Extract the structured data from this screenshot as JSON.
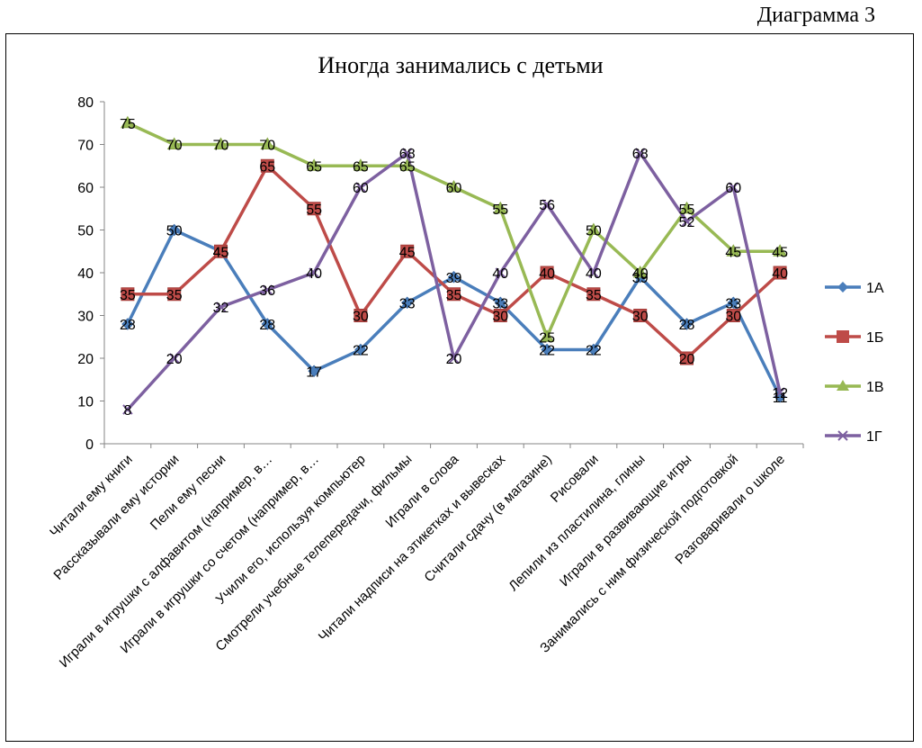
{
  "caption": "Диаграмма 3",
  "chart_data": {
    "type": "line",
    "title": "Иногда занимались с детьми",
    "xlabel": "",
    "ylabel": "",
    "ylim": [
      0,
      80
    ],
    "yticks": [
      0,
      10,
      20,
      30,
      40,
      50,
      60,
      70,
      80
    ],
    "grid": false,
    "legend_position": "right",
    "categories": [
      "Читали ему книги",
      "Рассказывали ему истории",
      "Пели ему песни",
      "Играли в игрушки с алфавитом (например, в…",
      "Играли в игрушки со счетом (например, в…",
      "Учили его, используя компьютер",
      "Смотрели учебные телепередачи, фильмы",
      "Играли в слова",
      "Читали надписи на этикетках и вывесках",
      "Считали сдачу (в магазине)",
      "Рисовали",
      "Лепили из пластилина, глины",
      "Играли в развивающие игры",
      "Занимались с ним физической подготовкой",
      "Разговаривали о школе"
    ],
    "series": [
      {
        "name": "1А",
        "color": "#4a7ebb",
        "marker": "diamond",
        "values": [
          28,
          50,
          45,
          28,
          17,
          22,
          33,
          39,
          33,
          22,
          22,
          39,
          28,
          33,
          11
        ]
      },
      {
        "name": "1Б",
        "color": "#be4b48",
        "marker": "square",
        "values": [
          35,
          35,
          45,
          65,
          55,
          30,
          45,
          35,
          30,
          40,
          35,
          30,
          20,
          30,
          40
        ]
      },
      {
        "name": "1В",
        "color": "#98b954",
        "marker": "triangle",
        "values": [
          75,
          70,
          70,
          70,
          65,
          65,
          65,
          60,
          55,
          25,
          50,
          40,
          55,
          45,
          45
        ]
      },
      {
        "name": "1Г",
        "color": "#7d60a0",
        "marker": "x",
        "values": [
          8,
          20,
          32,
          36,
          40,
          60,
          68,
          20,
          40,
          56,
          40,
          68,
          52,
          60,
          12
        ]
      }
    ]
  }
}
